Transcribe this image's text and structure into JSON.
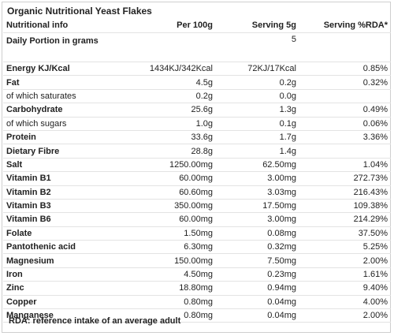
{
  "title": "Organic Nutritional Yeast Flakes",
  "headers": [
    "Nutritional info",
    "Per 100g",
    "Serving 5g",
    "Serving %RDA*"
  ],
  "daily_portion": {
    "label": "Daily Portion in grams",
    "serving": "5"
  },
  "rows": [
    {
      "label": "Energy KJ/Kcal",
      "bold": true,
      "per100": "1434KJ/342Kcal",
      "serving": "72KJ/17Kcal",
      "rda": "0.85%"
    },
    {
      "label": "Fat",
      "bold": true,
      "per100": "4.5g",
      "serving": "0.2g",
      "rda": "0.32%"
    },
    {
      "label": "of which saturates",
      "bold": false,
      "per100": "0.2g",
      "serving": "0.0g",
      "rda": ""
    },
    {
      "label": "Carbohydrate",
      "bold": true,
      "per100": "25.6g",
      "serving": "1.3g",
      "rda": "0.49%"
    },
    {
      "label": "of which sugars",
      "bold": false,
      "per100": "1.0g",
      "serving": "0.1g",
      "rda": "0.06%"
    },
    {
      "label": "Protein",
      "bold": true,
      "per100": "33.6g",
      "serving": "1.7g",
      "rda": "3.36%"
    },
    {
      "label": "Dietary Fibre",
      "bold": true,
      "per100": "28.8g",
      "serving": "1.4g",
      "rda": ""
    },
    {
      "label": "Salt",
      "bold": true,
      "per100": "1250.00mg",
      "serving": "62.50mg",
      "rda": "1.04%"
    },
    {
      "label": "Vitamin B1",
      "bold": true,
      "per100": "60.00mg",
      "serving": "3.00mg",
      "rda": "272.73%"
    },
    {
      "label": "Vitamin B2",
      "bold": true,
      "per100": "60.60mg",
      "serving": "3.03mg",
      "rda": "216.43%"
    },
    {
      "label": "Vitamin B3",
      "bold": true,
      "per100": "350.00mg",
      "serving": "17.50mg",
      "rda": "109.38%"
    },
    {
      "label": "Vitamin B6",
      "bold": true,
      "per100": "60.00mg",
      "serving": "3.00mg",
      "rda": "214.29%"
    },
    {
      "label": "Folate",
      "bold": true,
      "per100": "1.50mg",
      "serving": "0.08mg",
      "rda": "37.50%"
    },
    {
      "label": "Pantothenic acid",
      "bold": true,
      "per100": "6.30mg",
      "serving": "0.32mg",
      "rda": "5.25%"
    },
    {
      "label": "Magnesium",
      "bold": true,
      "per100": "150.00mg",
      "serving": "7.50mg",
      "rda": "2.00%"
    },
    {
      "label": "Iron",
      "bold": true,
      "per100": "4.50mg",
      "serving": "0.23mg",
      "rda": "1.61%"
    },
    {
      "label": "Zinc",
      "bold": true,
      "per100": "18.80mg",
      "serving": "0.94mg",
      "rda": "9.40%"
    },
    {
      "label": "Copper",
      "bold": true,
      "per100": "0.80mg",
      "serving": "0.04mg",
      "rda": "4.00%"
    },
    {
      "label": "Manganese",
      "bold": true,
      "per100": "0.80mg",
      "serving": "0.04mg",
      "rda": "2.00%"
    }
  ],
  "footer": "RDA: reference intake of an average adult"
}
